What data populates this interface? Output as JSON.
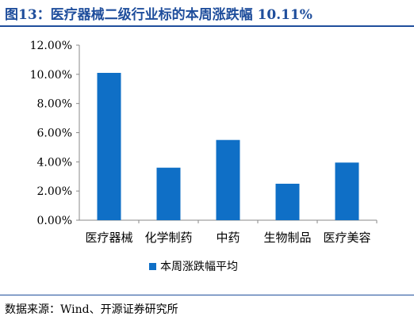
{
  "header": {
    "title": "图13：医疗器械二级行业标的本周涨跌幅 10.11%"
  },
  "footer": {
    "source": "数据来源：Wind、开源证券研究所"
  },
  "chart_data": {
    "type": "bar",
    "title": "",
    "xlabel": "",
    "ylabel": "",
    "categories": [
      "医疗器械",
      "化学制药",
      "中药",
      "生物制品",
      "医疗美容"
    ],
    "series": [
      {
        "name": "本周涨跌幅平均",
        "values": [
          10.1,
          3.6,
          5.5,
          2.5,
          3.95
        ],
        "color": "#0f6fc6"
      }
    ],
    "ylim": [
      0,
      12
    ],
    "yticks": [
      "0.00%",
      "2.00%",
      "4.00%",
      "6.00%",
      "8.00%",
      "10.00%",
      "12.00%"
    ],
    "legend": "bottom",
    "grid": false
  }
}
